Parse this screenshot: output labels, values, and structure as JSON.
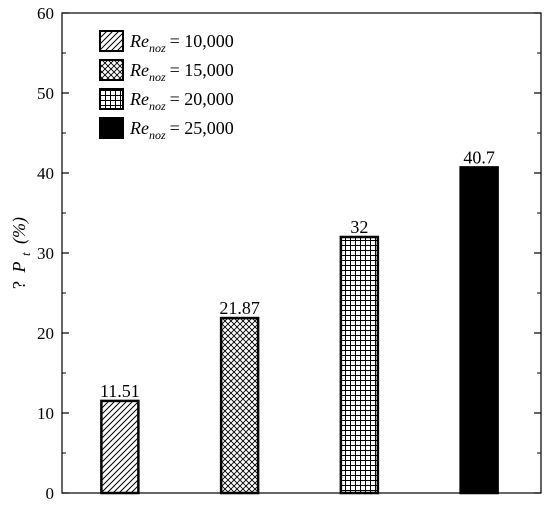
{
  "chart_data": {
    "type": "bar",
    "categories": [
      "Re_noz = 10,000",
      "Re_noz = 15,000",
      "Re_noz = 20,000",
      "Re_noz = 25,000"
    ],
    "values": [
      11.51,
      21.87,
      32,
      40.7
    ],
    "data_labels": [
      "11.51",
      "21.87",
      "32",
      "40.7"
    ],
    "title": "",
    "xlabel": "",
    "ylabel": "? P t (%)",
    "ylabel_parts": {
      "prefix": "?",
      "symbol": "P",
      "subscript": "t",
      "unit": "(%)"
    },
    "ylim": [
      0,
      60
    ],
    "yticks": [
      0,
      10,
      20,
      30,
      40,
      50,
      60
    ],
    "ytick_labels": [
      "0",
      "10",
      "20",
      "30",
      "40",
      "50",
      "60"
    ],
    "grid": false,
    "legend_position": "top-left",
    "legend": [
      {
        "symbol": "Re",
        "subscript": "noz",
        "value_text": "= 10,000",
        "pattern": "diagonal-hatch"
      },
      {
        "symbol": "Re",
        "subscript": "noz",
        "value_text": "= 15,000",
        "pattern": "crosshatch-diagonal"
      },
      {
        "symbol": "Re",
        "subscript": "noz",
        "value_text": "= 20,000",
        "pattern": "grid-square"
      },
      {
        "symbol": "Re",
        "subscript": "noz",
        "value_text": "= 25,000",
        "pattern": "solid-black"
      }
    ],
    "colors": {
      "stroke": "#000000",
      "background": "#ffffff",
      "solid": "#000000"
    }
  }
}
